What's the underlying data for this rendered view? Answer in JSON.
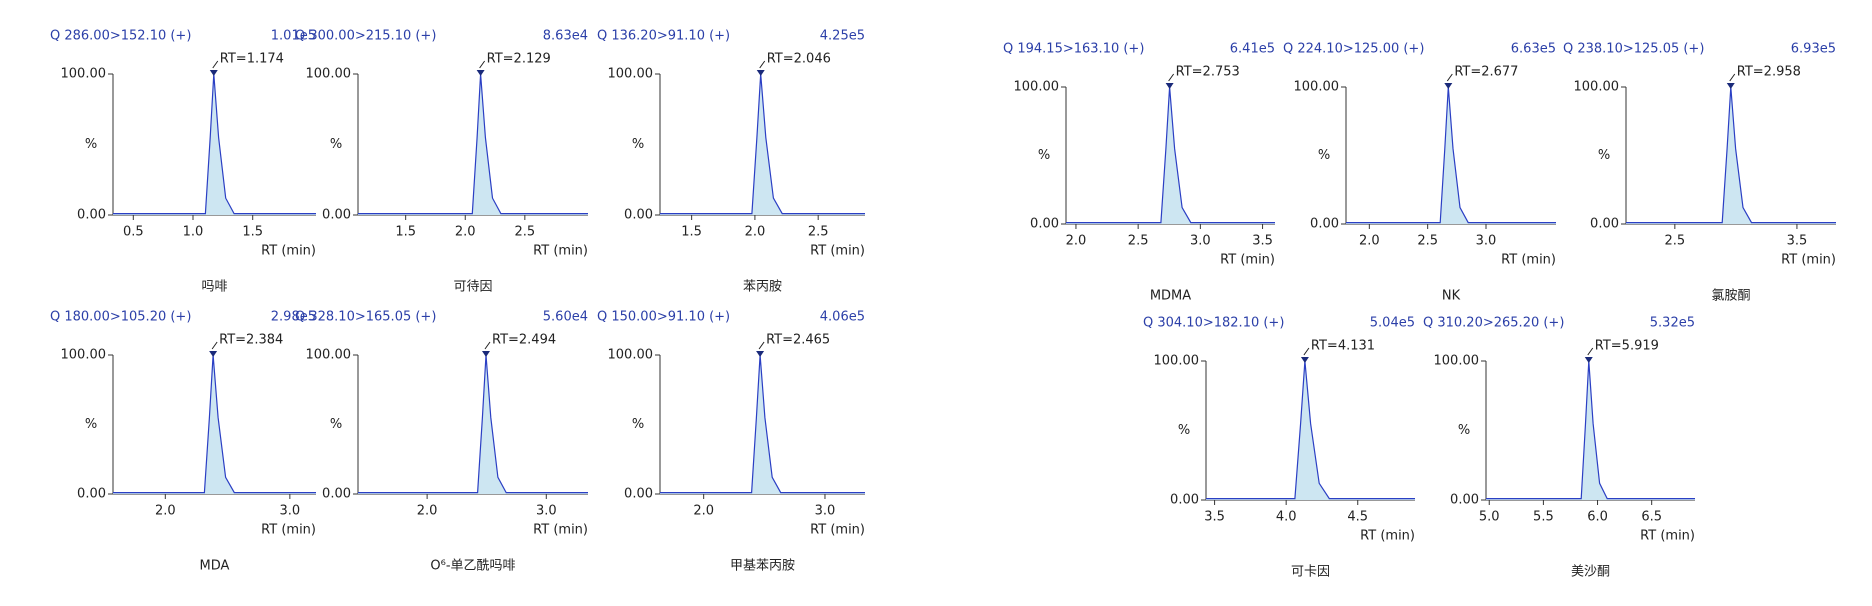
{
  "chart_data": [
    {
      "type": "line",
      "title": "Q 286.00>152.10 (+)",
      "intensity": "1.01e5",
      "annotation": "RT=1.174",
      "ylabel": "%",
      "xlabel": "RT (min)",
      "caption": "吗啡",
      "color": "#2b3fc4",
      "fill": "#cde6f2",
      "x": [
        0.33,
        1.104,
        1.144,
        1.174,
        1.214,
        1.274,
        1.344,
        2.03
      ],
      "values": [
        1,
        1,
        55,
        100,
        55,
        12,
        1,
        1
      ],
      "xlim": [
        0.33,
        2.03
      ],
      "ylim": [
        0,
        100
      ],
      "xticks": [
        0.5,
        {
          "value": 1,
          "label": "1.0"
        },
        1.5
      ],
      "yticks": [
        {
          "value": 0,
          "label": "0.00"
        },
        {
          "value": 100,
          "label": "100.00"
        }
      ]
    },
    {
      "type": "line",
      "title": "Q 300.00>215.10 (+)",
      "intensity": "8.63e4",
      "annotation": "RT=2.129",
      "ylabel": "%",
      "xlabel": "RT (min)",
      "caption": "可待因",
      "color": "#2b3fc4",
      "fill": "#cde6f2",
      "x": [
        1.1,
        2.059,
        2.099,
        2.129,
        2.169,
        2.229,
        2.299,
        3.03
      ],
      "values": [
        1,
        1,
        55,
        100,
        55,
        12,
        1,
        1
      ],
      "xlim": [
        1.1,
        3.03
      ],
      "ylim": [
        0,
        100
      ],
      "xticks": [
        1.5,
        {
          "value": 2,
          "label": "2.0"
        },
        2.5
      ],
      "yticks": [
        {
          "value": 0,
          "label": "0.00"
        },
        {
          "value": 100,
          "label": "100.00"
        }
      ]
    },
    {
      "type": "line",
      "title": "Q 136.20>91.10 (+)",
      "intensity": "4.25e5",
      "annotation": "RT=2.046",
      "ylabel": "%",
      "xlabel": "RT (min)",
      "caption": "苯丙胺",
      "color": "#2b3fc4",
      "fill": "#cde6f2",
      "x": [
        1.25,
        1.976,
        2.016,
        2.046,
        2.086,
        2.146,
        2.216,
        2.87
      ],
      "values": [
        1,
        1,
        55,
        100,
        55,
        12,
        1,
        1
      ],
      "xlim": [
        1.25,
        2.87
      ],
      "ylim": [
        0,
        100
      ],
      "xticks": [
        1.5,
        {
          "value": 2,
          "label": "2.0"
        },
        2.5
      ],
      "yticks": [
        {
          "value": 0,
          "label": "0.00"
        },
        {
          "value": 100,
          "label": "100.00"
        }
      ]
    },
    {
      "type": "line",
      "title": "Q 180.00>105.20 (+)",
      "intensity": "2.98e5",
      "annotation": "RT=2.384",
      "ylabel": "%",
      "xlabel": "RT (min)",
      "caption": "MDA",
      "color": "#2b3fc4",
      "fill": "#cde6f2",
      "x": [
        1.58,
        2.314,
        2.354,
        2.384,
        2.424,
        2.484,
        2.554,
        3.21
      ],
      "values": [
        1,
        1,
        55,
        100,
        55,
        12,
        1,
        1
      ],
      "xlim": [
        1.58,
        3.21
      ],
      "ylim": [
        0,
        100
      ],
      "xticks": [
        {
          "value": 2,
          "label": "2.0"
        },
        {
          "value": 3,
          "label": "3.0"
        }
      ],
      "yticks": [
        {
          "value": 0,
          "label": "0.00"
        },
        {
          "value": 100,
          "label": "100.00"
        }
      ]
    },
    {
      "type": "line",
      "title": "Q 328.10>165.05 (+)",
      "intensity": "5.60e4",
      "annotation": "RT=2.494",
      "ylabel": "%",
      "xlabel": "RT (min)",
      "caption": "O⁶-单乙酰吗啡",
      "color": "#2b3fc4",
      "fill": "#cde6f2",
      "x": [
        1.42,
        2.424,
        2.464,
        2.494,
        2.534,
        2.594,
        2.664,
        3.35
      ],
      "values": [
        1,
        1,
        55,
        100,
        55,
        12,
        1,
        1
      ],
      "xlim": [
        1.42,
        3.35
      ],
      "ylim": [
        0,
        100
      ],
      "xticks": [
        {
          "value": 2,
          "label": "2.0"
        },
        {
          "value": 3,
          "label": "3.0"
        }
      ],
      "yticks": [
        {
          "value": 0,
          "label": "0.00"
        },
        {
          "value": 100,
          "label": "100.00"
        }
      ]
    },
    {
      "type": "line",
      "title": "Q 150.00>91.10 (+)",
      "intensity": "4.06e5",
      "annotation": "RT=2.465",
      "ylabel": "%",
      "xlabel": "RT (min)",
      "caption": "甲基苯丙胺",
      "color": "#2b3fc4",
      "fill": "#cde6f2",
      "x": [
        1.64,
        2.395,
        2.435,
        2.465,
        2.505,
        2.565,
        2.635,
        3.33
      ],
      "values": [
        1,
        1,
        55,
        100,
        55,
        12,
        1,
        1
      ],
      "xlim": [
        1.64,
        3.33
      ],
      "ylim": [
        0,
        100
      ],
      "xticks": [
        {
          "value": 2,
          "label": "2.0"
        },
        {
          "value": 3,
          "label": "3.0"
        }
      ],
      "yticks": [
        {
          "value": 0,
          "label": "0.00"
        },
        {
          "value": 100,
          "label": "100.00"
        }
      ]
    },
    {
      "type": "line",
      "title": "Q 194.15>163.10 (+)",
      "intensity": "6.41e5",
      "annotation": "RT=2.753",
      "ylabel": "%",
      "xlabel": "RT (min)",
      "caption": "MDMA",
      "color": "#2b3fc4",
      "fill": "#cde6f2",
      "x": [
        1.92,
        2.683,
        2.723,
        2.753,
        2.793,
        2.853,
        2.923,
        3.6
      ],
      "values": [
        1,
        1,
        55,
        100,
        55,
        12,
        1,
        1
      ],
      "xlim": [
        1.92,
        3.6
      ],
      "ylim": [
        0,
        100
      ],
      "xticks": [
        {
          "value": 2,
          "label": "2.0"
        },
        2.5,
        {
          "value": 3,
          "label": "3.0"
        },
        3.5
      ],
      "yticks": [
        {
          "value": 0,
          "label": "0.00"
        },
        {
          "value": 100,
          "label": "100.00"
        }
      ]
    },
    {
      "type": "line",
      "title": "Q 224.10>125.00 (+)",
      "intensity": "6.63e5",
      "annotation": "RT=2.677",
      "ylabel": "%",
      "xlabel": "RT (min)",
      "caption": "NK",
      "color": "#2b3fc4",
      "fill": "#cde6f2",
      "x": [
        1.8,
        2.607,
        2.647,
        2.677,
        2.717,
        2.777,
        2.847,
        3.6
      ],
      "values": [
        1,
        1,
        55,
        100,
        55,
        12,
        1,
        1
      ],
      "xlim": [
        1.8,
        3.6
      ],
      "ylim": [
        0,
        100
      ],
      "xticks": [
        {
          "value": 2,
          "label": "2.0"
        },
        2.5,
        {
          "value": 3,
          "label": "3.0"
        }
      ],
      "yticks": [
        {
          "value": 0,
          "label": "0.00"
        },
        {
          "value": 100,
          "label": "100.00"
        }
      ]
    },
    {
      "type": "line",
      "title": "Q 238.10>125.05 (+)",
      "intensity": "6.93e5",
      "annotation": "RT=2.958",
      "ylabel": "%",
      "xlabel": "RT (min)",
      "caption": "氯胺酮",
      "color": "#2b3fc4",
      "fill": "#cde6f2",
      "x": [
        2.1,
        2.888,
        2.928,
        2.958,
        2.998,
        3.058,
        3.128,
        3.82
      ],
      "values": [
        1,
        1,
        55,
        100,
        55,
        12,
        1,
        1
      ],
      "xlim": [
        2.1,
        3.82
      ],
      "ylim": [
        0,
        100
      ],
      "xticks": [
        2.5,
        3.5
      ],
      "yticks": [
        {
          "value": 0,
          "label": "0.00"
        },
        {
          "value": 100,
          "label": "100.00"
        }
      ]
    },
    {
      "type": "line",
      "title": "Q 304.10>182.10 (+)",
      "intensity": "5.04e5",
      "annotation": "RT=4.131",
      "ylabel": "%",
      "xlabel": "RT (min)",
      "caption": "可卡因",
      "color": "#2b3fc4",
      "fill": "#cde6f2",
      "x": [
        3.44,
        4.061,
        4.101,
        4.131,
        4.171,
        4.231,
        4.301,
        4.9
      ],
      "values": [
        1,
        1,
        55,
        100,
        55,
        12,
        1,
        1
      ],
      "xlim": [
        3.44,
        4.9
      ],
      "ylim": [
        0,
        100
      ],
      "xticks": [
        3.5,
        {
          "value": 4,
          "label": "4.0"
        },
        4.5
      ],
      "yticks": [
        {
          "value": 0,
          "label": "0.00"
        },
        {
          "value": 100,
          "label": "100.00"
        }
      ]
    },
    {
      "type": "line",
      "title": "Q 310.20>265.20 (+)",
      "intensity": "5.32e5",
      "annotation": "RT=5.919",
      "ylabel": "%",
      "xlabel": "RT (min)",
      "caption": "美沙酮",
      "color": "#2b3fc4",
      "fill": "#cde6f2",
      "x": [
        4.97,
        5.849,
        5.889,
        5.919,
        5.959,
        6.019,
        6.089,
        6.9
      ],
      "values": [
        1,
        1,
        55,
        100,
        55,
        12,
        1,
        1
      ],
      "xlim": [
        4.97,
        6.9
      ],
      "ylim": [
        0,
        100
      ],
      "xticks": [
        {
          "value": 5,
          "label": "5.0"
        },
        5.5,
        {
          "value": 6,
          "label": "6.0"
        },
        6.5
      ],
      "yticks": [
        {
          "value": 0,
          "label": "0.00"
        },
        {
          "value": 100,
          "label": "100.00"
        }
      ]
    }
  ]
}
